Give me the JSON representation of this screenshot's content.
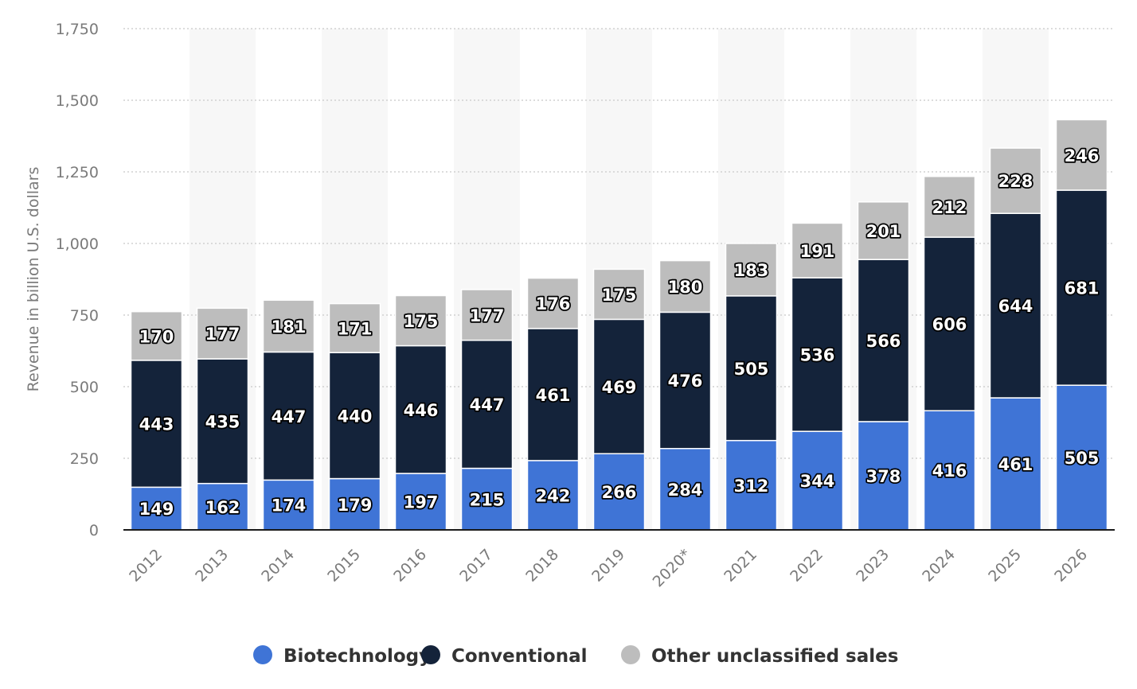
{
  "chart_data": {
    "type": "bar",
    "stacked": true,
    "categories": [
      "2012",
      "2013",
      "2014",
      "2015",
      "2016",
      "2017",
      "2018",
      "2019",
      "2020*",
      "2021",
      "2022",
      "2023",
      "2024",
      "2025",
      "2026"
    ],
    "series": [
      {
        "name": "Biotechnology",
        "color": "#3f74d6",
        "values": [
          149,
          162,
          174,
          179,
          197,
          215,
          242,
          266,
          284,
          312,
          344,
          378,
          416,
          461,
          505
        ]
      },
      {
        "name": "Conventional",
        "color": "#14233a",
        "values": [
          443,
          435,
          447,
          440,
          446,
          447,
          461,
          469,
          476,
          505,
          536,
          566,
          606,
          644,
          681
        ]
      },
      {
        "name": "Other unclassified sales",
        "color": "#bdbdbd",
        "values": [
          170,
          177,
          181,
          171,
          175,
          177,
          176,
          175,
          180,
          183,
          191,
          201,
          212,
          228,
          246
        ]
      }
    ],
    "title": "",
    "xlabel": "",
    "ylabel": "Revenue in billion U.S. dollars",
    "ylim": [
      0,
      1750
    ],
    "yticks": [
      0,
      250,
      500,
      750,
      1000,
      1250,
      1500,
      1750
    ],
    "ytick_labels": [
      "0",
      "250",
      "500",
      "750",
      "1,000",
      "1,250",
      "1,500",
      "1,750"
    ],
    "grid": true,
    "legend_position": "bottom"
  }
}
